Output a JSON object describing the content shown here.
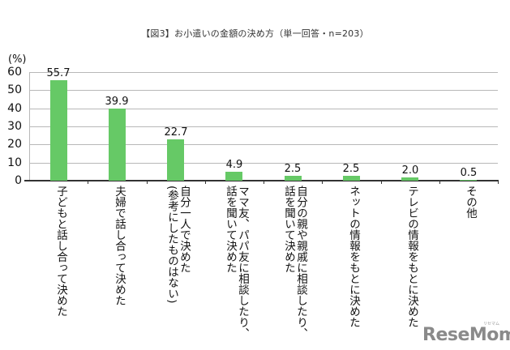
{
  "chart_data": {
    "type": "bar",
    "title": "【図3】お小遣いの金額の決め方（単一回答・n=203）",
    "xlabel": "",
    "ylabel": "(%)",
    "ylim": [
      0,
      60
    ],
    "yticks": [
      0,
      10,
      20,
      30,
      40,
      50,
      60
    ],
    "grid": true,
    "legend": null,
    "bar_color": "#66c966",
    "categories": [
      "子どもと話し合って決めた",
      "夫婦で話し合って決めた",
      "自分一人で決めた（参考にしたものはない）",
      "ママ友、パパ友に相談したり、話を聞いて決めた",
      "自分の親や親戚に相談したり、話を聞いて決めた",
      "ネットの情報をもとに決めた",
      "テレビの情報をもとに決めた",
      "その他"
    ],
    "values": [
      55.7,
      39.9,
      22.7,
      4.9,
      2.5,
      2.5,
      2.0,
      0.5
    ],
    "value_labels": [
      "55.7",
      "39.9",
      "22.7",
      "4.9",
      "2.5",
      "2.5",
      "2.0",
      "0.5"
    ]
  },
  "display": {
    "title": "【図3】お小遣いの金額の決め方（単一回答・n=203）",
    "unit": "(%)",
    "category_lines": [
      "子どもと話し合って決めた",
      "夫婦で話し合って決めた",
      "自分一人で決めた\n(参考にしたものはない)",
      "ママ友、パパ友に相談したり、\n話を聞いて決めた",
      "自分の親や親戚に相談したり、\n話を聞いて決めた",
      "ネットの情報をもとに決めた",
      "テレビの情報をもとに決めた",
      "その他"
    ]
  },
  "watermark": {
    "text": "ReseMom",
    "subtext": "リセマム"
  }
}
